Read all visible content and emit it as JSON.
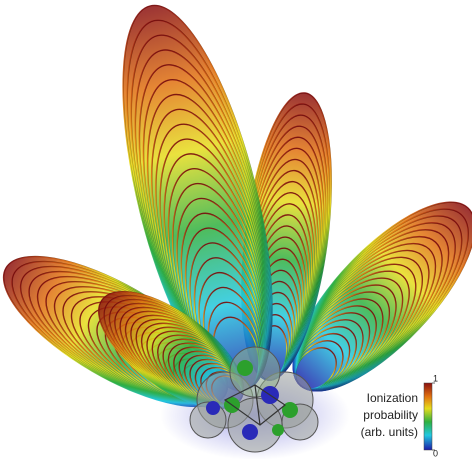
{
  "colorbar": {
    "label": [
      "Ionization",
      "probability",
      "(arb. units)"
    ],
    "lim": [
      0,
      1
    ],
    "ticks": [
      0,
      1
    ]
  }
}
